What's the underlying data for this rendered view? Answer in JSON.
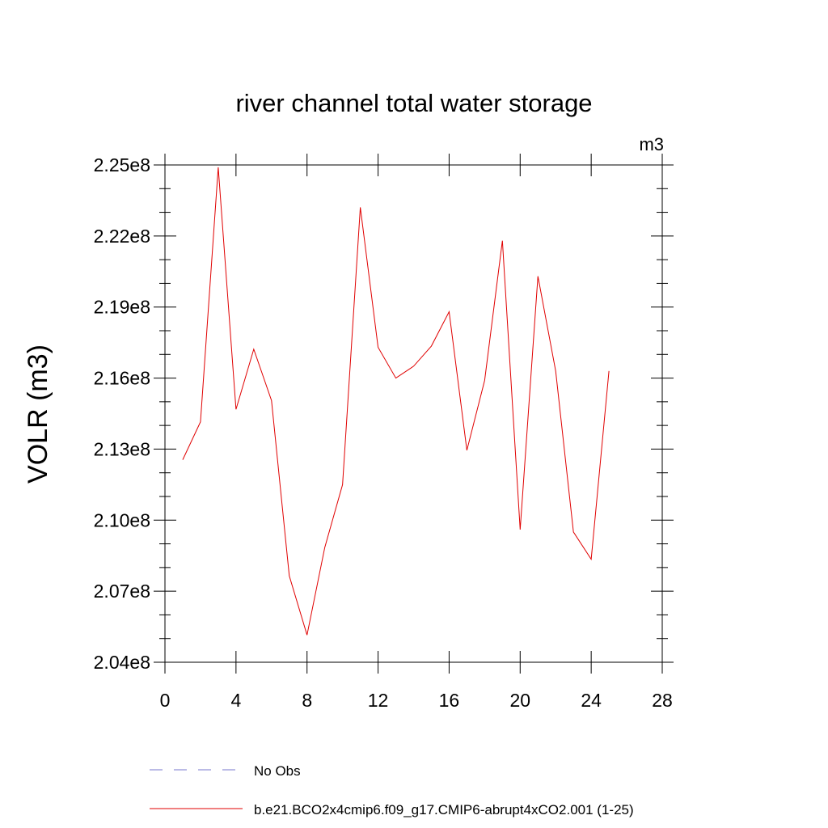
{
  "chart_data": {
    "type": "line",
    "title": "river channel total water storage",
    "units": "m3",
    "ylabel": "VOLR  (m3)",
    "xlabel": "",
    "xlim": [
      0,
      28
    ],
    "ylim": [
      204000000,
      225000000
    ],
    "x_ticks": [
      0,
      4,
      8,
      12,
      16,
      20,
      24,
      28
    ],
    "x_tick_labels": [
      "0",
      "4",
      "8",
      "12",
      "16",
      "20",
      "24",
      "28"
    ],
    "y_ticks": [
      204000000,
      207000000,
      210000000,
      213000000,
      216000000,
      219000000,
      222000000,
      225000000
    ],
    "y_tick_labels": [
      "2.04e8",
      "2.07e8",
      "2.10e8",
      "2.13e8",
      "2.16e8",
      "2.19e8",
      "2.22e8",
      "2.25e8"
    ],
    "grid": false,
    "legend_placement": "bottom",
    "series": [
      {
        "name": "b.e21.BCO2x4cmip6.f09_g17.CMIP6-abrupt4xCO2.001 (1-25)",
        "color": "#e00000",
        "dash": "solid",
        "x": [
          1,
          2,
          3,
          4,
          5,
          6,
          7,
          8,
          9,
          10,
          11,
          12,
          13,
          14,
          15,
          16,
          17,
          18,
          19,
          20,
          21,
          22,
          23,
          24,
          25
        ],
        "y": [
          212550000,
          214150000,
          224900000,
          214680000,
          217220000,
          215050000,
          207650000,
          205150000,
          208850000,
          211500000,
          223210000,
          217300000,
          216000000,
          216500000,
          217350000,
          218800000,
          212950000,
          215900000,
          221800000,
          209600000,
          220300000,
          216300000,
          209500000,
          208350000,
          216300000
        ]
      }
    ],
    "legend": [
      {
        "label": "No Obs",
        "color": "#7777cc",
        "dash": "dashed"
      },
      {
        "label": "b.e21.BCO2x4cmip6.f09_g17.CMIP6-abrupt4xCO2.001 (1-25)",
        "color": "#e00000",
        "dash": "solid"
      }
    ]
  }
}
